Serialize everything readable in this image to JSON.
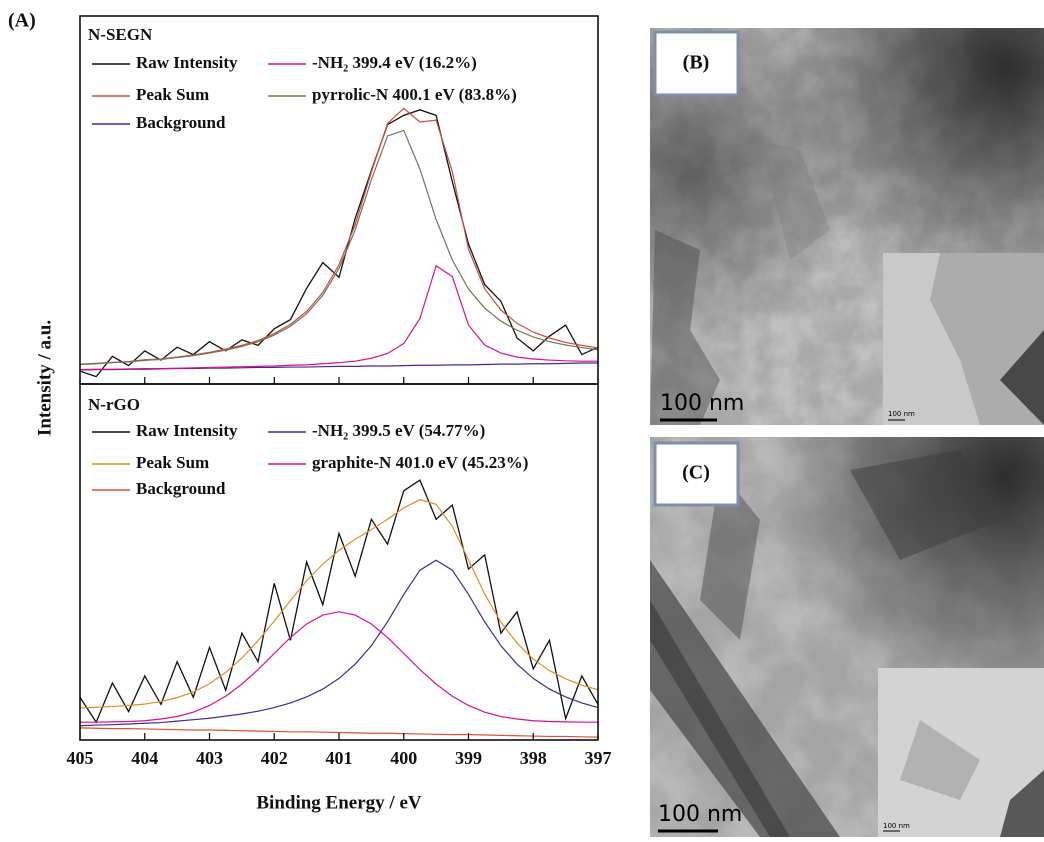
{
  "panel_a": {
    "label": "(A)",
    "x_label": "Binding Energy / eV",
    "y_label": "Intensity / a.u."
  },
  "chart_data": [
    {
      "type": "line",
      "title": "N-SEGN",
      "x": [
        405,
        404.75,
        404.5,
        404.25,
        404,
        403.75,
        403.5,
        403.25,
        403,
        402.75,
        402.5,
        402.25,
        402,
        401.75,
        401.5,
        401.25,
        401,
        400.75,
        400.5,
        400.25,
        400,
        399.75,
        399.5,
        399.25,
        399,
        398.75,
        398.5,
        398.25,
        398,
        397.75,
        397.5,
        397.25,
        397
      ],
      "xlim": [
        405,
        397
      ],
      "ylim": [
        0,
        100
      ],
      "series": [
        {
          "name": "Raw Intensity",
          "color": "#111111",
          "values": [
            3.5,
            2.0,
            7.5,
            5.0,
            9.0,
            6.5,
            10.0,
            8.0,
            11.5,
            9.0,
            12.0,
            10.5,
            15.0,
            17.5,
            26.0,
            33.0,
            29.0,
            45.0,
            58.0,
            70.5,
            73.0,
            74.5,
            73.0,
            55.0,
            38.0,
            27.0,
            22.5,
            12.5,
            9.0,
            13.0,
            16.0,
            8.0,
            10.0
          ]
        },
        {
          "name": "Peak Sum",
          "color": "#c4503a",
          "values": [
            5.4,
            5.6,
            5.9,
            6.1,
            6.6,
            6.8,
            7.3,
            7.9,
            8.6,
            9.5,
            10.5,
            11.8,
            13.7,
            16.2,
            19.7,
            24.9,
            32.4,
            43.3,
            57.6,
            70.8,
            74.9,
            71.2,
            71.7,
            57.7,
            36.6,
            25.9,
            20.1,
            16.5,
            14.1,
            12.5,
            11.3,
            10.5,
            9.8
          ]
        },
        {
          "name": "Background",
          "color": "#4a2a8a",
          "values": [
            3.8,
            3.9,
            3.9,
            4.0,
            4.0,
            4.1,
            4.2,
            4.2,
            4.3,
            4.3,
            4.4,
            4.5,
            4.5,
            4.6,
            4.6,
            4.7,
            4.8,
            4.8,
            4.9,
            4.9,
            5.0,
            5.1,
            5.1,
            5.2,
            5.2,
            5.3,
            5.4,
            5.4,
            5.5,
            5.5,
            5.6,
            5.7,
            5.7
          ]
        },
        {
          "name": "-NH₂  399.4 eV (16.2%)",
          "color": "#d4148c",
          "values": [
            3.9,
            4.0,
            4.0,
            4.1,
            4.2,
            4.2,
            4.3,
            4.4,
            4.5,
            4.6,
            4.7,
            4.8,
            4.9,
            5.1,
            5.2,
            5.5,
            5.8,
            6.2,
            7.0,
            8.3,
            11.0,
            17.8,
            32.1,
            29.2,
            16.0,
            10.6,
            8.4,
            7.3,
            6.8,
            6.5,
            6.3,
            6.2,
            6.2
          ]
        },
        {
          "name": "pyrrolic-N 400.1 eV (83.8%)",
          "color": "#72725e",
          "values": [
            5.3,
            5.5,
            5.8,
            6.0,
            6.4,
            6.7,
            7.2,
            7.7,
            8.4,
            9.2,
            10.2,
            11.5,
            13.3,
            15.7,
            19.1,
            24.1,
            31.4,
            41.9,
            55.5,
            67.4,
            68.9,
            58.4,
            44.7,
            33.7,
            25.8,
            20.6,
            17.1,
            14.6,
            12.8,
            11.5,
            10.6,
            9.9,
            9.3
          ]
        }
      ]
    },
    {
      "type": "line",
      "title": "N-rGO",
      "x": [
        405,
        404.75,
        404.5,
        404.25,
        404,
        403.75,
        403.5,
        403.25,
        403,
        402.75,
        402.5,
        402.25,
        402,
        401.75,
        401.5,
        401.25,
        401,
        400.75,
        400.5,
        400.25,
        400,
        399.75,
        399.5,
        399.25,
        399,
        398.75,
        398.5,
        398.25,
        398,
        397.75,
        397.5,
        397.25,
        397
      ],
      "xlim": [
        405,
        397
      ],
      "xticks": [
        405,
        404,
        403,
        402,
        401,
        400,
        399,
        398,
        397
      ],
      "ylim": [
        0,
        100
      ],
      "series": [
        {
          "name": "Raw Intensity",
          "color": "#111111",
          "values": [
            12,
            5,
            16,
            8,
            18,
            10,
            22,
            12,
            26,
            14,
            30,
            22,
            44,
            28,
            50,
            38,
            58,
            46,
            62,
            55,
            70,
            73,
            62,
            66,
            48,
            52,
            30,
            36,
            20,
            28,
            6,
            18,
            10
          ]
        },
        {
          "name": "Peak Sum",
          "color": "#d9902f",
          "values": [
            9.0,
            9.2,
            9.4,
            9.7,
            10.1,
            10.8,
            11.9,
            13.5,
            15.8,
            19.0,
            23.0,
            27.9,
            33.4,
            39.2,
            44.7,
            49.4,
            53.3,
            56.4,
            59.1,
            62.0,
            65.2,
            67.5,
            66.2,
            60.0,
            50.6,
            41.0,
            33.1,
            27.2,
            22.7,
            19.5,
            17.2,
            15.4,
            14.1
          ]
        },
        {
          "name": "Background",
          "color": "#d2553a",
          "values": [
            3.4,
            3.3,
            3.2,
            3.2,
            3.1,
            3.0,
            2.9,
            2.8,
            2.8,
            2.7,
            2.6,
            2.5,
            2.4,
            2.3,
            2.3,
            2.2,
            2.1,
            2.0,
            1.9,
            1.9,
            1.8,
            1.7,
            1.6,
            1.5,
            1.5,
            1.4,
            1.3,
            1.2,
            1.1,
            1.0,
            1.0,
            0.9,
            0.8
          ]
        },
        {
          "name": "-NH₂  399.5 eV (54.77%)",
          "color": "#3a2f8f",
          "values": [
            4.0,
            4.2,
            4.3,
            4.5,
            4.7,
            4.9,
            5.3,
            5.7,
            6.1,
            6.7,
            7.3,
            8.1,
            9.1,
            10.4,
            12.1,
            14.3,
            17.3,
            21.3,
            26.5,
            33.2,
            40.9,
            47.7,
            50.5,
            47.7,
            40.9,
            33.2,
            26.5,
            21.3,
            17.3,
            14.3,
            12.1,
            10.4,
            9.1
          ]
        },
        {
          "name": "graphite-N 401.0 eV (45.23%)",
          "color": "#d4148c",
          "values": [
            5.0,
            5.0,
            5.1,
            5.2,
            5.4,
            5.9,
            6.6,
            7.8,
            9.7,
            12.3,
            15.7,
            19.8,
            24.3,
            28.8,
            32.6,
            35.1,
            36.0,
            35.1,
            32.6,
            28.8,
            24.3,
            19.8,
            15.7,
            12.3,
            9.7,
            7.8,
            6.6,
            5.9,
            5.4,
            5.2,
            5.1,
            5.0,
            5.0
          ]
        }
      ]
    }
  ],
  "images": [
    {
      "label": "(B)",
      "scale_bar": "100 nm",
      "inset_scale_bar": "100 nm"
    },
    {
      "label": "(C)",
      "scale_bar": "100 nm",
      "inset_scale_bar": "100 nm"
    }
  ]
}
